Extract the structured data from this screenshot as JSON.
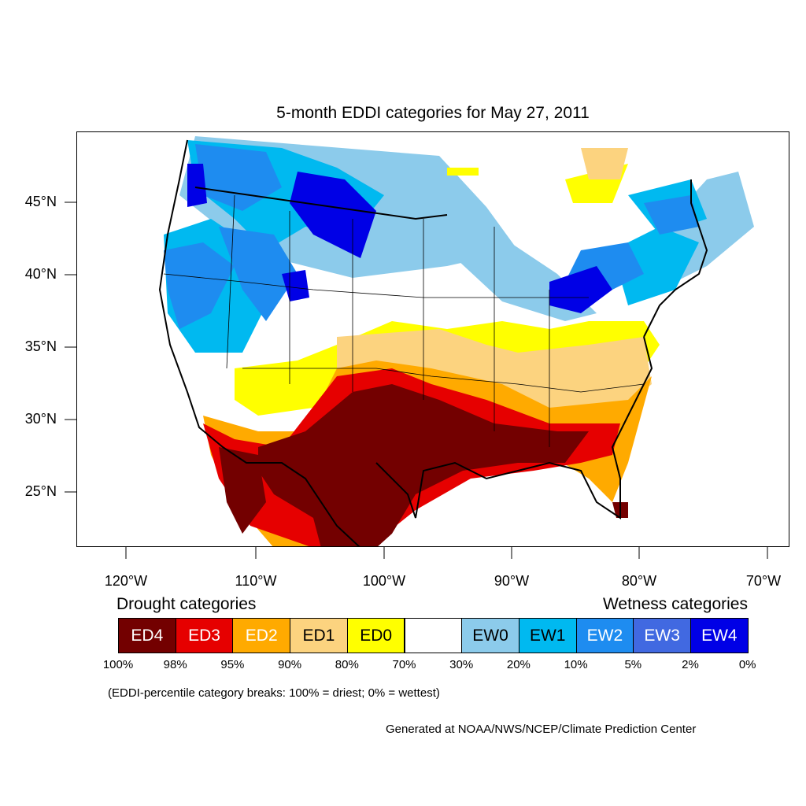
{
  "title": "5-month EDDI categories for May 27, 2011",
  "map": {
    "lat_labels": [
      "45°N",
      "40°N",
      "35°N",
      "30°N",
      "25°N"
    ],
    "lon_labels": [
      "120°W",
      "110°W",
      "100°W",
      "90°W",
      "80°W",
      "70°W"
    ],
    "region": "Contiguous United States"
  },
  "legend": {
    "drought_title": "Drought categories",
    "wetness_title": "Wetness categories",
    "categories": [
      {
        "label": "ED4",
        "color": "#730000",
        "text_color": "#ffffff"
      },
      {
        "label": "ED3",
        "color": "#e60000",
        "text_color": "#ffffff"
      },
      {
        "label": "ED2",
        "color": "#ffaa00",
        "text_color": "#ffffff"
      },
      {
        "label": "ED1",
        "color": "#fcd37f",
        "text_color": "#000000"
      },
      {
        "label": "ED0",
        "color": "#ffff00",
        "text_color": "#000000"
      },
      {
        "label": "",
        "color": "#ffffff",
        "text_color": "#000000"
      },
      {
        "label": "EW0",
        "color": "#8ccbeb",
        "text_color": "#000000"
      },
      {
        "label": "EW1",
        "color": "#00b9f0",
        "text_color": "#000000"
      },
      {
        "label": "EW2",
        "color": "#1e8cf0",
        "text_color": "#ffffff"
      },
      {
        "label": "EW3",
        "color": "#4169e1",
        "text_color": "#ffffff"
      },
      {
        "label": "EW4",
        "color": "#0000e6",
        "text_color": "#ffffff"
      }
    ],
    "breaks": [
      "100%",
      "98%",
      "95%",
      "90%",
      "80%",
      "70%",
      "30%",
      "20%",
      "10%",
      "5%",
      "2%",
      "0%"
    ],
    "note": "(EDDI-percentile category breaks: 100% = driest; 0% = wettest)"
  },
  "credit": "Generated at NOAA/NWS/NCEP/Climate Prediction Center"
}
